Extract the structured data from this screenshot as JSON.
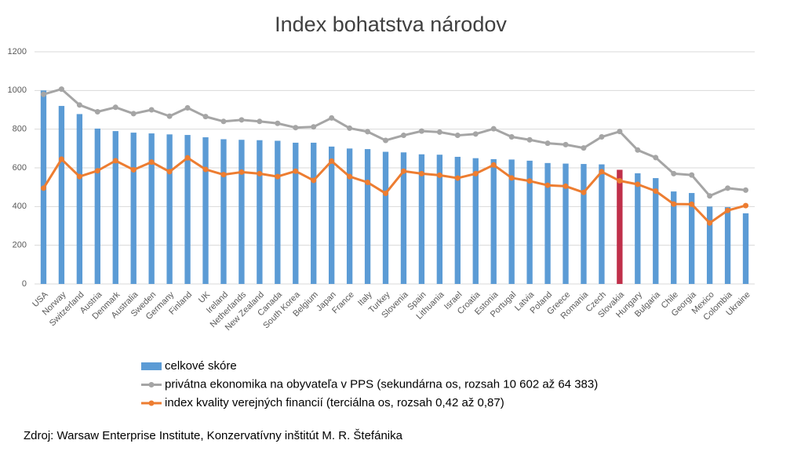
{
  "chart_data": {
    "type": "bar",
    "title": "Index bohatstva národov",
    "categories": [
      "USA",
      "Norway",
      "Switzerland",
      "Austria",
      "Denmark",
      "Australia",
      "Sweden",
      "Germany",
      "Finland",
      "UK",
      "Ireland",
      "Netherlands",
      "New Zealand",
      "Canada",
      "South Korea",
      "Belgium",
      "Japan",
      "France",
      "Italy",
      "Turkey",
      "Slovenia",
      "Spain",
      "Lithuania",
      "Israel",
      "Croatia",
      "Estonia",
      "Portugal",
      "Latvia",
      "Poland",
      "Greece",
      "Romania",
      "Czech",
      "Slovakia",
      "Hungary",
      "Bulgaria",
      "Chile",
      "Georgia",
      "Mexico",
      "Colombia",
      "Ukraine"
    ],
    "series": [
      {
        "name": "celkové skóre",
        "type": "bar",
        "color": "#5b9bd5",
        "bar_colors": [
          "#5b9bd5",
          "#5b9bd5",
          "#5b9bd5",
          "#5b9bd5",
          "#5b9bd5",
          "#5b9bd5",
          "#5b9bd5",
          "#5b9bd5",
          "#5b9bd5",
          "#5b9bd5",
          "#5b9bd5",
          "#5b9bd5",
          "#5b9bd5",
          "#5b9bd5",
          "#5b9bd5",
          "#5b9bd5",
          "#5b9bd5",
          "#5b9bd5",
          "#5b9bd5",
          "#5b9bd5",
          "#5b9bd5",
          "#5b9bd5",
          "#5b9bd5",
          "#5b9bd5",
          "#5b9bd5",
          "#5b9bd5",
          "#5b9bd5",
          "#5b9bd5",
          "#5b9bd5",
          "#5b9bd5",
          "#5b9bd5",
          "#5b9bd5",
          "#c0304a",
          "#5b9bd5",
          "#5b9bd5",
          "#5b9bd5",
          "#5b9bd5",
          "#5b9bd5",
          "#5b9bd5",
          "#5b9bd5"
        ],
        "values": [
          1000,
          920,
          878,
          803,
          790,
          782,
          778,
          773,
          770,
          758,
          748,
          745,
          743,
          740,
          730,
          730,
          710,
          700,
          697,
          683,
          680,
          670,
          668,
          657,
          650,
          645,
          643,
          637,
          625,
          622,
          620,
          618,
          590,
          572,
          547,
          478,
          470,
          400,
          397,
          365
        ]
      },
      {
        "name": "privátna ekonomika na obyvateľa v PPS (sekundárna os, rozsah 10 602 až 64 383)",
        "type": "line",
        "color": "#a5a5a5",
        "values": [
          980,
          1007,
          925,
          890,
          913,
          880,
          900,
          867,
          910,
          865,
          840,
          848,
          840,
          830,
          808,
          812,
          858,
          805,
          787,
          742,
          768,
          790,
          785,
          768,
          775,
          802,
          760,
          745,
          727,
          720,
          703,
          760,
          788,
          692,
          653,
          570,
          563,
          455,
          495,
          485
        ]
      },
      {
        "name": "index kvality verejných financií (terciálna os, rozsah 0,42 až 0,87)",
        "type": "line",
        "color": "#ed7d31",
        "values": [
          495,
          645,
          555,
          585,
          637,
          590,
          630,
          580,
          652,
          592,
          565,
          578,
          570,
          555,
          583,
          535,
          635,
          555,
          525,
          468,
          583,
          570,
          562,
          547,
          570,
          615,
          548,
          532,
          510,
          505,
          473,
          580,
          533,
          515,
          480,
          413,
          412,
          315,
          380,
          405
        ]
      }
    ],
    "ylim": [
      0,
      1200
    ],
    "yticks": [
      0,
      200,
      400,
      600,
      800,
      1000,
      1200
    ],
    "grid": true,
    "legend": "bottom",
    "source": "Zdroj: Warsaw Enterprise Institute, Konzervatívny inštitút M. R. Štefánika"
  }
}
